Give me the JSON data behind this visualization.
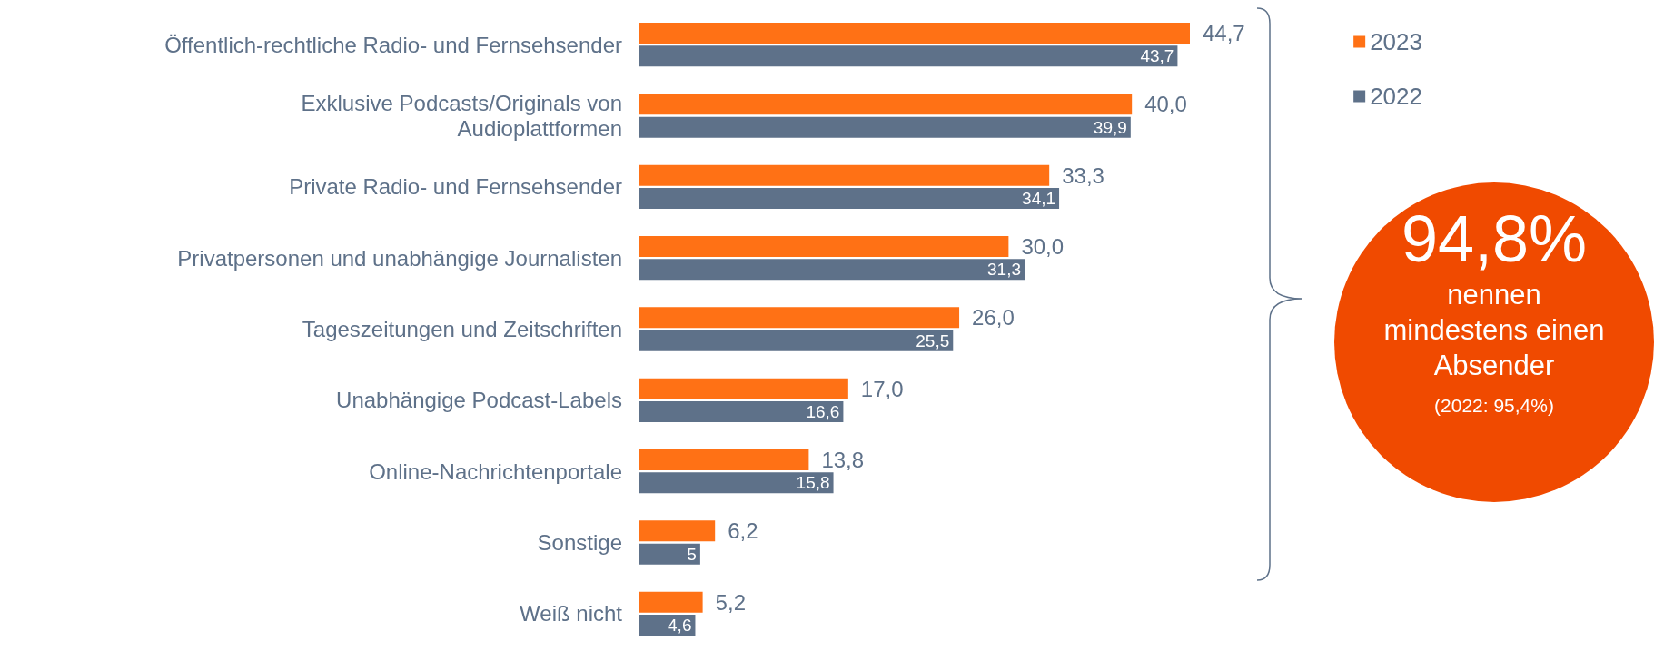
{
  "chart_data": {
    "type": "bar",
    "orientation": "horizontal",
    "categories": [
      "Öffentlich-rechtliche Radio- und Fernsehsender",
      "Exklusive Podcasts/Originals von\nAudioplattformen",
      "Private Radio- und Fernsehsender",
      "Privatpersonen und unabhängige Journalisten",
      "Tageszeitungen und Zeitschriften",
      "Unabhängige Podcast-Labels",
      "Online-Nachrichtenportale",
      "Sonstige",
      "Weiß nicht"
    ],
    "series": [
      {
        "name": "2023",
        "color": "#ff7115",
        "values": [
          44.7,
          40.0,
          33.3,
          30.0,
          26.0,
          17.0,
          13.8,
          6.2,
          5.2
        ],
        "value_labels": [
          "44,7",
          "40,0",
          "33,3",
          "30,0",
          "26,0",
          "17,0",
          "13,8",
          "6,2",
          "5,2"
        ]
      },
      {
        "name": "2022",
        "color": "#5e7189",
        "values": [
          43.7,
          39.9,
          34.1,
          31.3,
          25.5,
          16.6,
          15.8,
          5,
          4.6
        ],
        "value_labels": [
          "43,7",
          "39,9",
          "34,1",
          "31,3",
          "25,5",
          "16,6",
          "15,8",
          "5",
          "4,6"
        ]
      }
    ],
    "legend": "top right",
    "annotations": [
      "94,8%",
      "nennen mindestens einen Absender",
      "(2022: 95,4%)"
    ]
  }
}
